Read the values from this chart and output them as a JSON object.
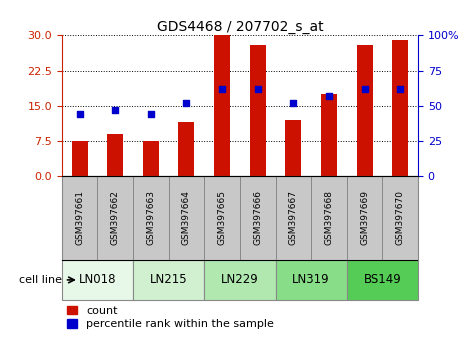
{
  "title": "GDS4468 / 207702_s_at",
  "samples": [
    "GSM397661",
    "GSM397662",
    "GSM397663",
    "GSM397664",
    "GSM397665",
    "GSM397666",
    "GSM397667",
    "GSM397668",
    "GSM397669",
    "GSM397670"
  ],
  "counts": [
    7.5,
    9.0,
    7.5,
    11.5,
    30.0,
    28.0,
    12.0,
    17.5,
    28.0,
    29.0
  ],
  "percentile_ranks": [
    44,
    47,
    44,
    52,
    62,
    62,
    52,
    57,
    62,
    62
  ],
  "cell_lines": [
    {
      "name": "LN018",
      "start": 0,
      "end": 2,
      "color": "#e8f8e8"
    },
    {
      "name": "LN215",
      "start": 2,
      "end": 4,
      "color": "#d0f0d0"
    },
    {
      "name": "LN229",
      "start": 4,
      "end": 6,
      "color": "#b0e8b0"
    },
    {
      "name": "LN319",
      "start": 6,
      "end": 8,
      "color": "#88dd88"
    },
    {
      "name": "BS149",
      "start": 8,
      "end": 10,
      "color": "#55cc55"
    }
  ],
  "left_ylim": [
    0,
    30
  ],
  "right_ylim": [
    0,
    100
  ],
  "left_yticks": [
    0,
    7.5,
    15,
    22.5,
    30
  ],
  "right_yticks": [
    0,
    25,
    50,
    75,
    100
  ],
  "right_yticklabels": [
    "0",
    "25",
    "50",
    "75",
    "100%"
  ],
  "bar_color": "#cc1100",
  "dot_color": "#0000cc",
  "bar_width": 0.45,
  "tick_label_color_left": "#cc2200",
  "tick_label_color_right": "#0000cc",
  "legend_count_color": "#cc1100",
  "legend_pct_color": "#0000cc",
  "sample_label_color": "#333333",
  "xlabel_bg_color": "#c8c8c8"
}
